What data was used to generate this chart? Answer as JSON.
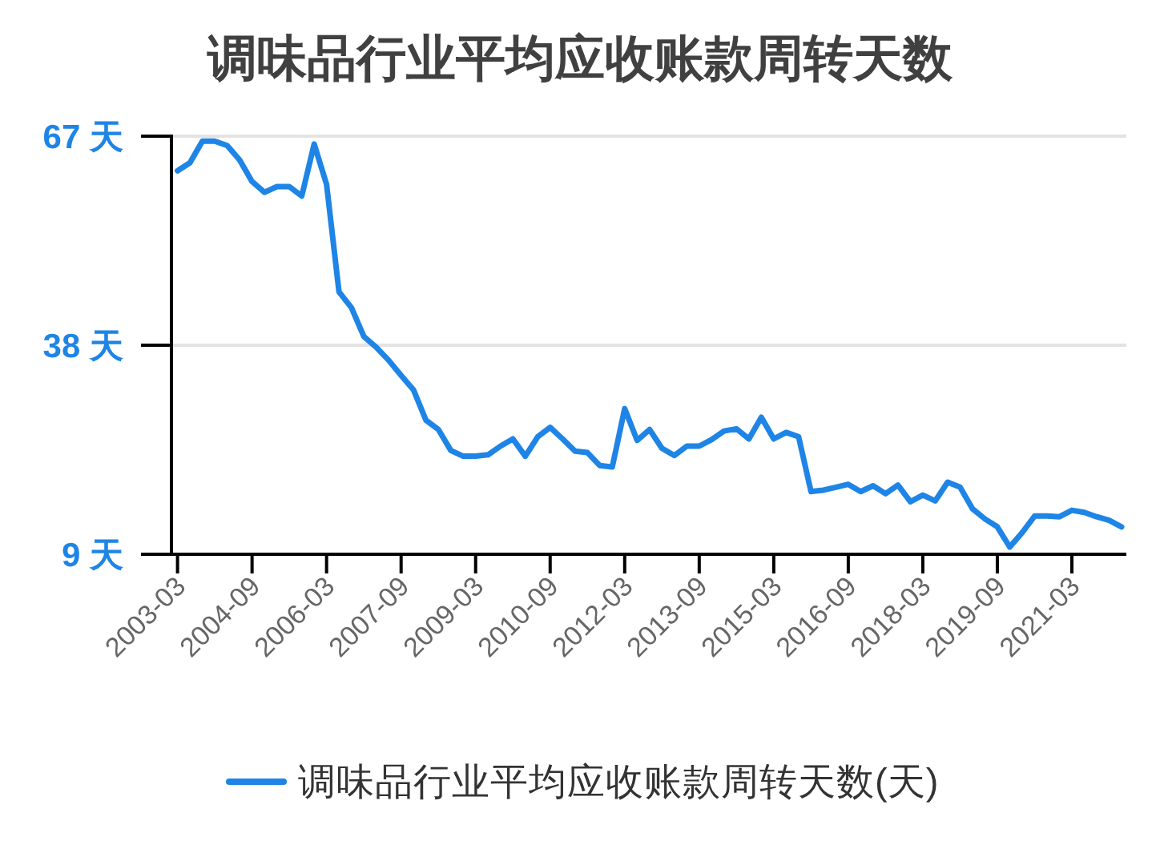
{
  "chart_data": {
    "type": "line",
    "title": "调味品行业平均应收账款周转天数",
    "categories": [
      "2003-03",
      null,
      null,
      null,
      null,
      null,
      "2004-09",
      null,
      null,
      null,
      null,
      null,
      "2006-03",
      null,
      null,
      null,
      null,
      null,
      "2007-09",
      null,
      null,
      null,
      null,
      null,
      "2009-03",
      null,
      null,
      null,
      null,
      null,
      "2010-09",
      null,
      null,
      null,
      null,
      null,
      "2012-03",
      null,
      null,
      null,
      null,
      null,
      "2013-09",
      null,
      null,
      null,
      null,
      null,
      "2015-03",
      null,
      null,
      null,
      null,
      null,
      "2016-09",
      null,
      null,
      null,
      null,
      null,
      "2018-03",
      null,
      null,
      null,
      null,
      null,
      "2019-09",
      null,
      null,
      null,
      null,
      null,
      "2021-03",
      null,
      null,
      null,
      null
    ],
    "series": [
      {
        "name": "调味品行业平均应收账款周转天数(天)",
        "color": "#1e85e6",
        "values": [
          62.2,
          63.3,
          66.3,
          66.3,
          65.7,
          63.7,
          60.7,
          59.2,
          60.0,
          60.0,
          58.7,
          65.9,
          60.3,
          45.4,
          43.2,
          39.2,
          37.7,
          35.9,
          33.8,
          31.8,
          27.6,
          26.3,
          23.4,
          22.6,
          22.6,
          22.8,
          24.0,
          25.0,
          22.6,
          25.3,
          26.6,
          25.0,
          23.3,
          23.1,
          21.3,
          21.1,
          29.2,
          24.8,
          26.3,
          23.7,
          22.7,
          24.0,
          24.0,
          24.9,
          26.1,
          26.4,
          25.0,
          28.0,
          25.0,
          25.9,
          25.3,
          17.7,
          17.9,
          18.3,
          18.7,
          17.7,
          18.5,
          17.4,
          18.6,
          16.3,
          17.2,
          16.4,
          19.0,
          18.3,
          15.3,
          13.9,
          12.8,
          10.0,
          12.0,
          14.3,
          14.3,
          14.2,
          15.1,
          14.8,
          14.2,
          13.7,
          12.8
        ]
      }
    ],
    "ylim": [
      9,
      67
    ],
    "yticks": [
      {
        "value": 9,
        "label": "9 天"
      },
      {
        "value": 38,
        "label": "38 天"
      },
      {
        "value": 67,
        "label": "67 天"
      }
    ],
    "grid": "y",
    "legend": "bottom"
  }
}
